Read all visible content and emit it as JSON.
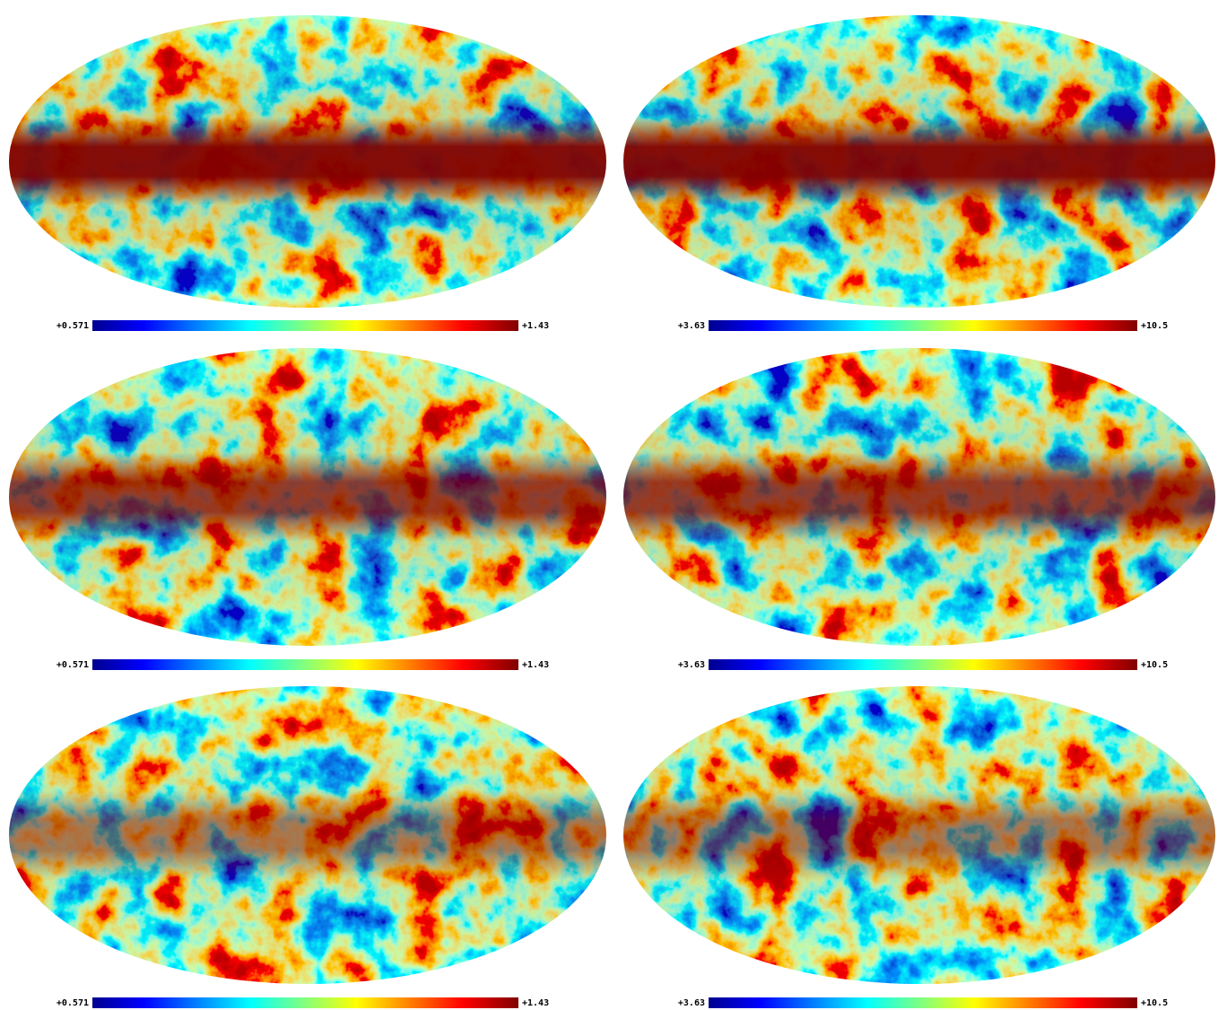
{
  "panels": [
    {
      "min_label": "+0.571",
      "max_label": "+1.43"
    },
    {
      "min_label": "+3.63",
      "max_label": "+10.5"
    },
    {
      "min_label": "+0.571",
      "max_label": "+1.43"
    },
    {
      "min_label": "+3.63",
      "max_label": "+10.5"
    },
    {
      "min_label": "+0.571",
      "max_label": "+1.43"
    },
    {
      "min_label": "+3.63",
      "max_label": "+10.5"
    }
  ]
}
